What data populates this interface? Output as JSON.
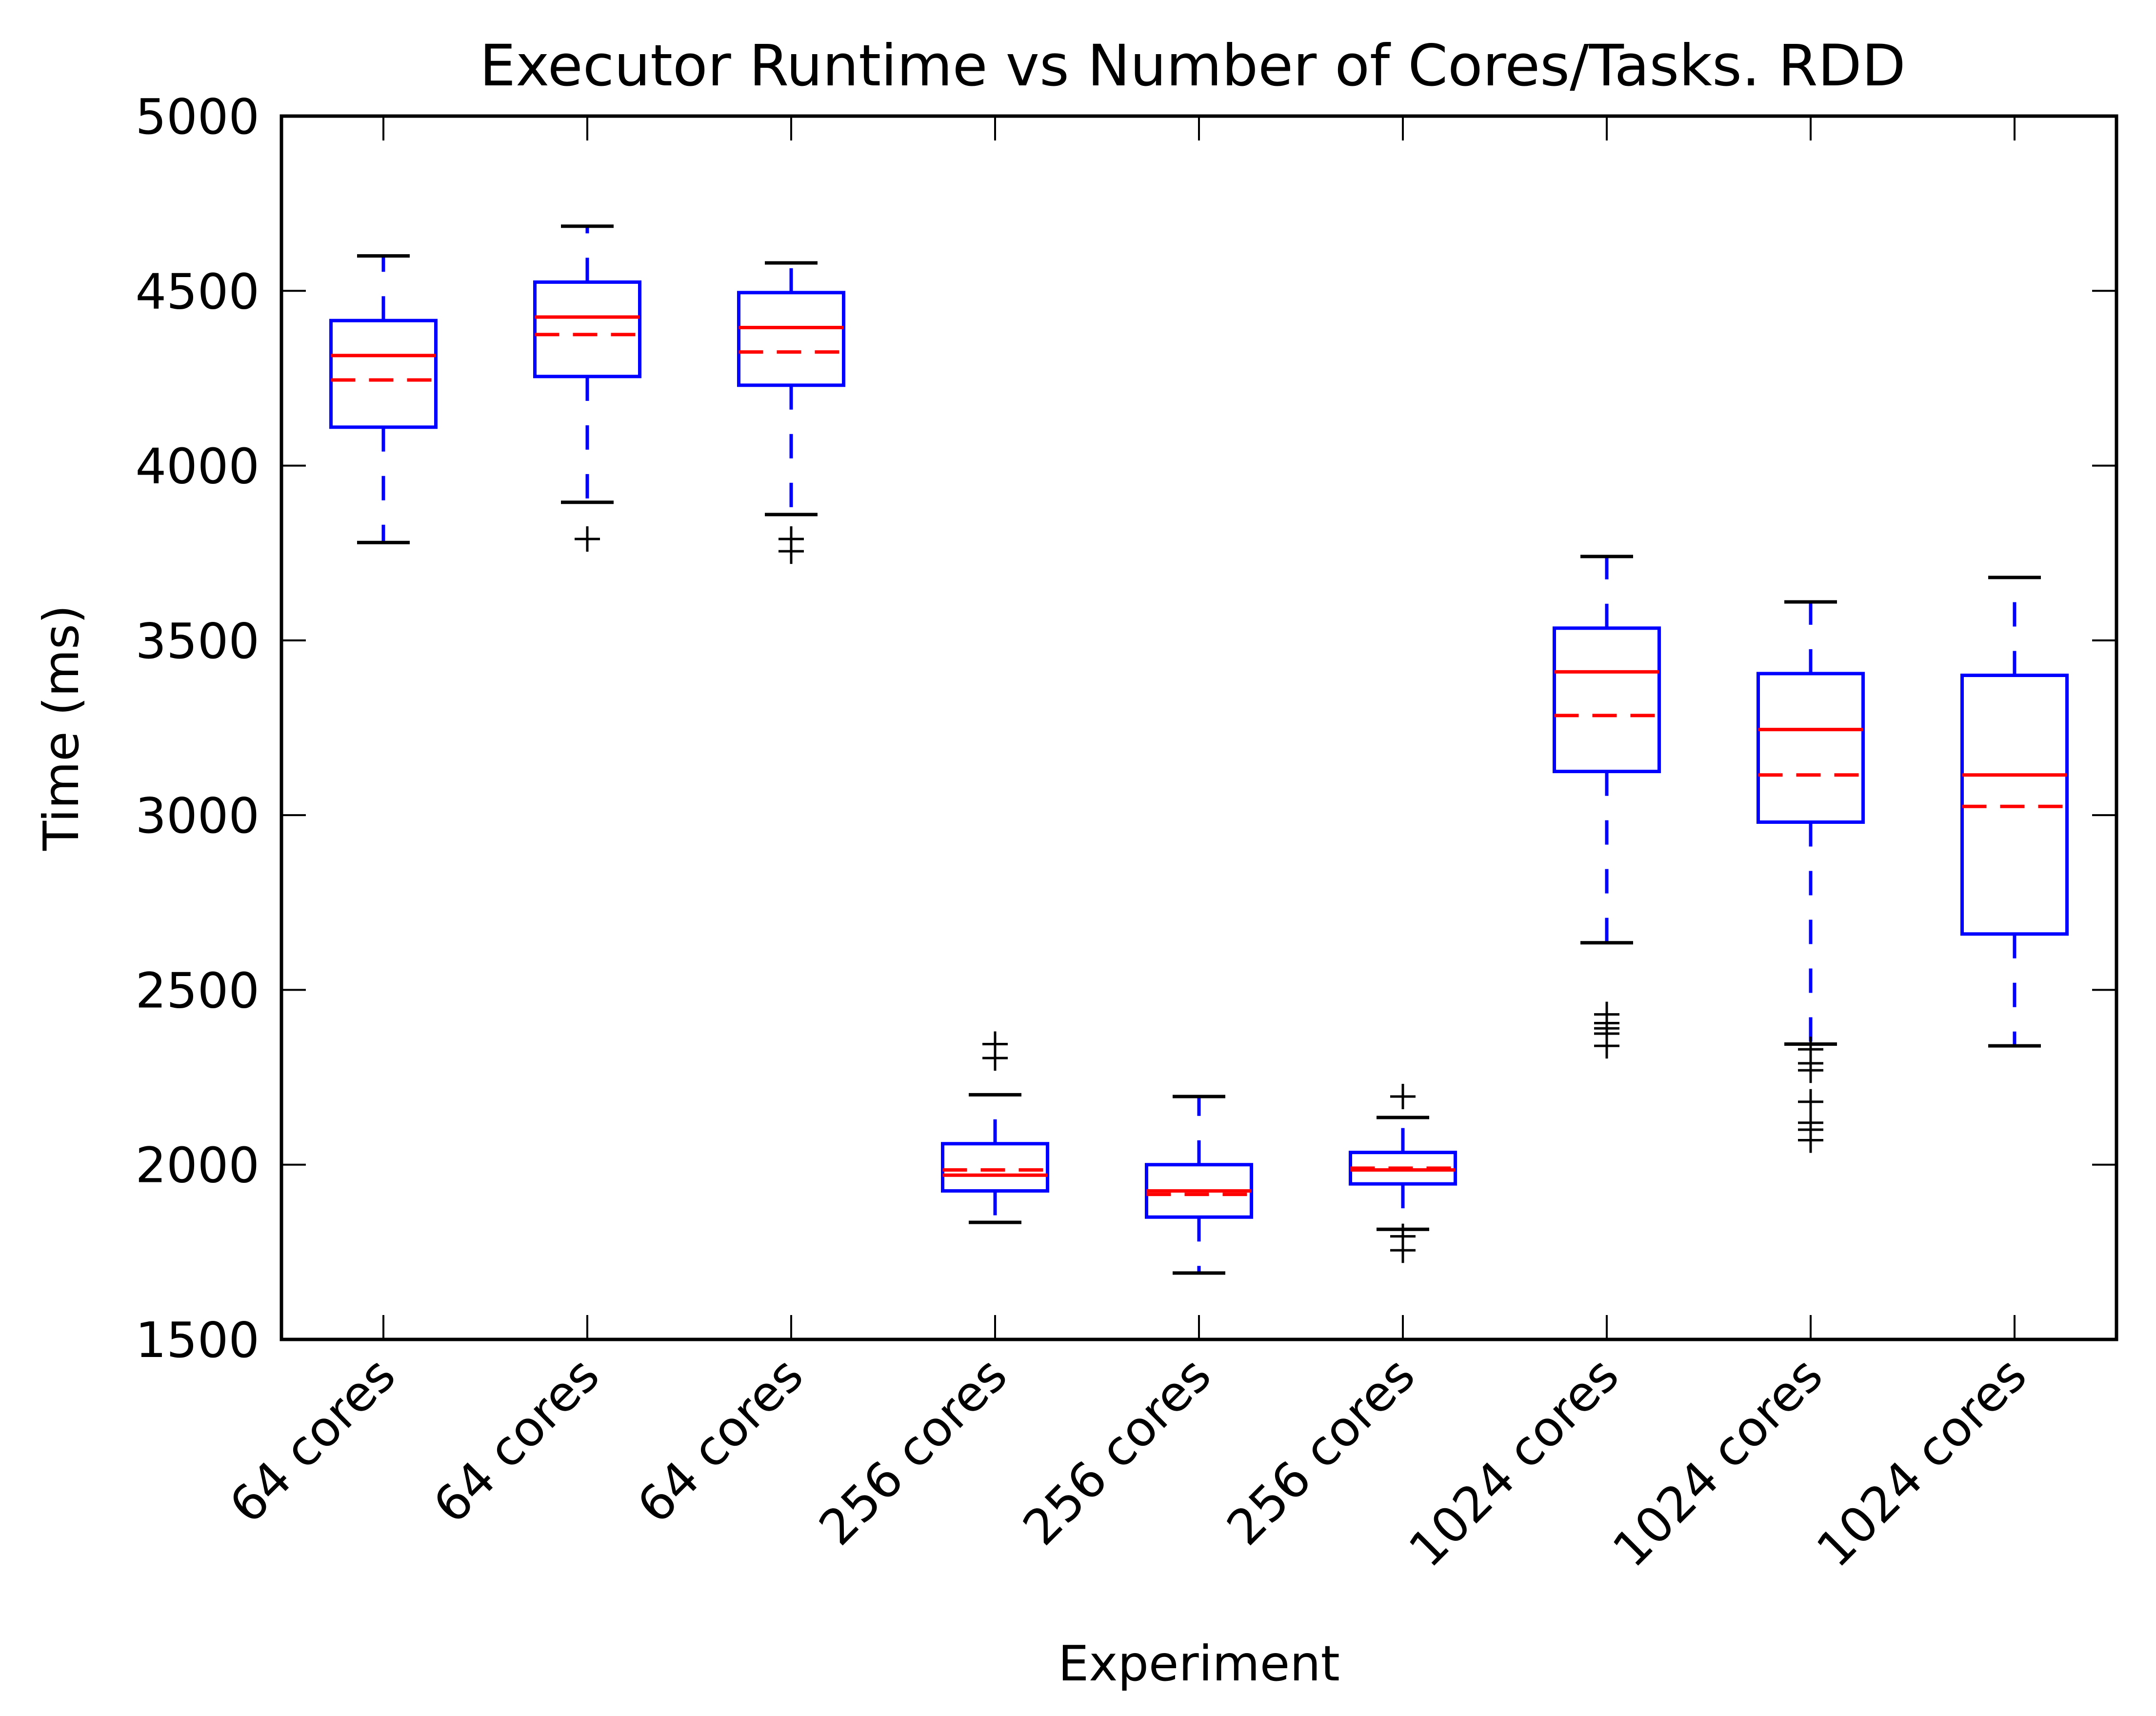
{
  "chart_data": {
    "type": "box",
    "title": "Executor Runtime vs Number of Cores/Tasks. RDD",
    "xlabel": "Experiment",
    "ylabel": "Time (ms)",
    "ylim": [
      1500,
      5000
    ],
    "yticks": [
      1500,
      2000,
      2500,
      3000,
      3500,
      4000,
      4500,
      5000
    ],
    "categories": [
      "64 cores",
      "64 cores",
      "64 cores",
      "256 cores",
      "256 cores",
      "256 cores",
      "1024 cores",
      "1024 cores",
      "1024 cores"
    ],
    "grid": false,
    "legend": "none",
    "boxes": [
      {
        "whisker_low": 3780,
        "q1": 4110,
        "median": 4315,
        "mean": 4245,
        "q3": 4415,
        "whisker_high": 4600,
        "fliers": []
      },
      {
        "whisker_low": 3895,
        "q1": 4255,
        "median": 4425,
        "mean": 4375,
        "q3": 4525,
        "whisker_high": 4685,
        "fliers": [
          3790
        ]
      },
      {
        "whisker_low": 3860,
        "q1": 4230,
        "median": 4395,
        "mean": 4325,
        "q3": 4495,
        "whisker_high": 4580,
        "fliers": [
          3790,
          3755
        ]
      },
      {
        "whisker_low": 1835,
        "q1": 1925,
        "median": 1970,
        "mean": 1985,
        "q3": 2060,
        "whisker_high": 2200,
        "fliers": [
          2305,
          2345
        ]
      },
      {
        "whisker_low": 1690,
        "q1": 1850,
        "median": 1925,
        "mean": 1915,
        "q3": 2000,
        "whisker_high": 2195,
        "fliers": []
      },
      {
        "whisker_low": 1815,
        "q1": 1945,
        "median": 1985,
        "mean": 1990,
        "q3": 2035,
        "whisker_high": 2135,
        "fliers": [
          2195,
          1795,
          1755
        ]
      },
      {
        "whisker_low": 2635,
        "q1": 3125,
        "median": 3410,
        "mean": 3285,
        "q3": 3535,
        "whisker_high": 3740,
        "fliers": [
          2430,
          2405,
          2390,
          2375,
          2340
        ]
      },
      {
        "whisker_low": 2345,
        "q1": 2980,
        "median": 3245,
        "mean": 3115,
        "q3": 3405,
        "whisker_high": 3610,
        "fliers": [
          2330,
          2290,
          2270,
          2180,
          2120,
          2100,
          2070
        ]
      },
      {
        "whisker_low": 2340,
        "q1": 2660,
        "median": 3115,
        "mean": 3025,
        "q3": 3400,
        "whisker_high": 3680,
        "fliers": []
      }
    ],
    "colors": {
      "box": "#0000ff",
      "median": "#ff0000",
      "mean": "#ff0000",
      "whisker_cap": "#000000",
      "flier": "#000000",
      "axes": "#000000"
    }
  }
}
